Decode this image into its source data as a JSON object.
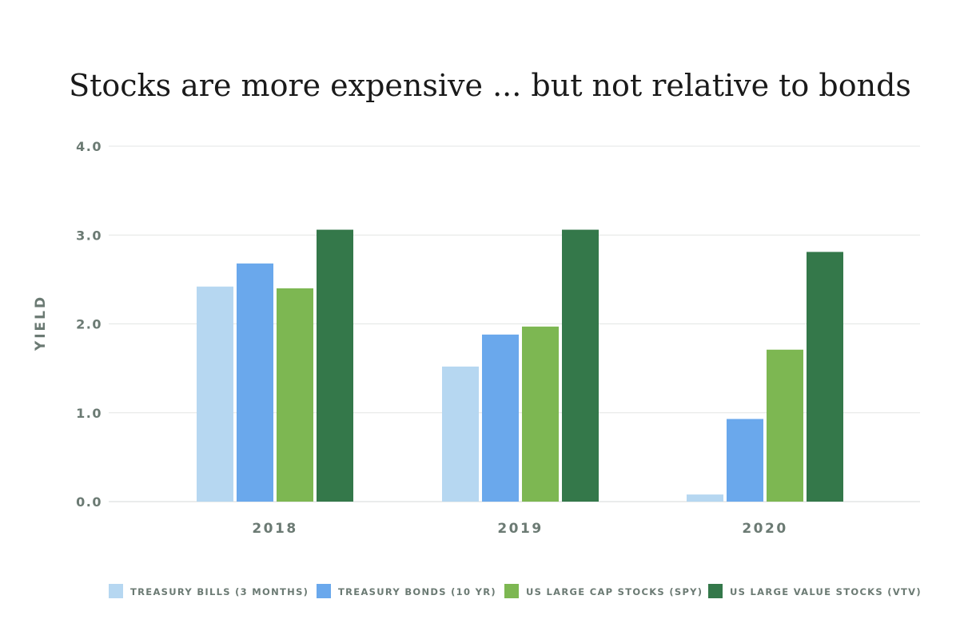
{
  "chart_data": {
    "type": "bar",
    "title": "Stocks are more expensive ... but not relative to bonds",
    "ylabel": "YIELD",
    "xlabel": "",
    "ylim": [
      0,
      4
    ],
    "yticks": [
      "0.0",
      "1.0",
      "2.0",
      "3.0",
      "4.0"
    ],
    "categories": [
      "2018",
      "2019",
      "2020"
    ],
    "grid": true,
    "legend_position": "bottom",
    "series": [
      {
        "name": "TREASURY BILLS (3 MONTHS)",
        "color": "#b6d7f1",
        "values": [
          2.42,
          1.52,
          0.08
        ]
      },
      {
        "name": "TREASURY BONDS (10 YR)",
        "color": "#6aa8ec",
        "values": [
          2.68,
          1.88,
          0.93
        ]
      },
      {
        "name": "US LARGE CAP STOCKS (SPY)",
        "color": "#7db752",
        "values": [
          2.4,
          1.97,
          1.71
        ]
      },
      {
        "name": "US LARGE VALUE STOCKS (VTV)",
        "color": "#34784a",
        "values": [
          3.06,
          3.06,
          2.81
        ]
      }
    ]
  }
}
